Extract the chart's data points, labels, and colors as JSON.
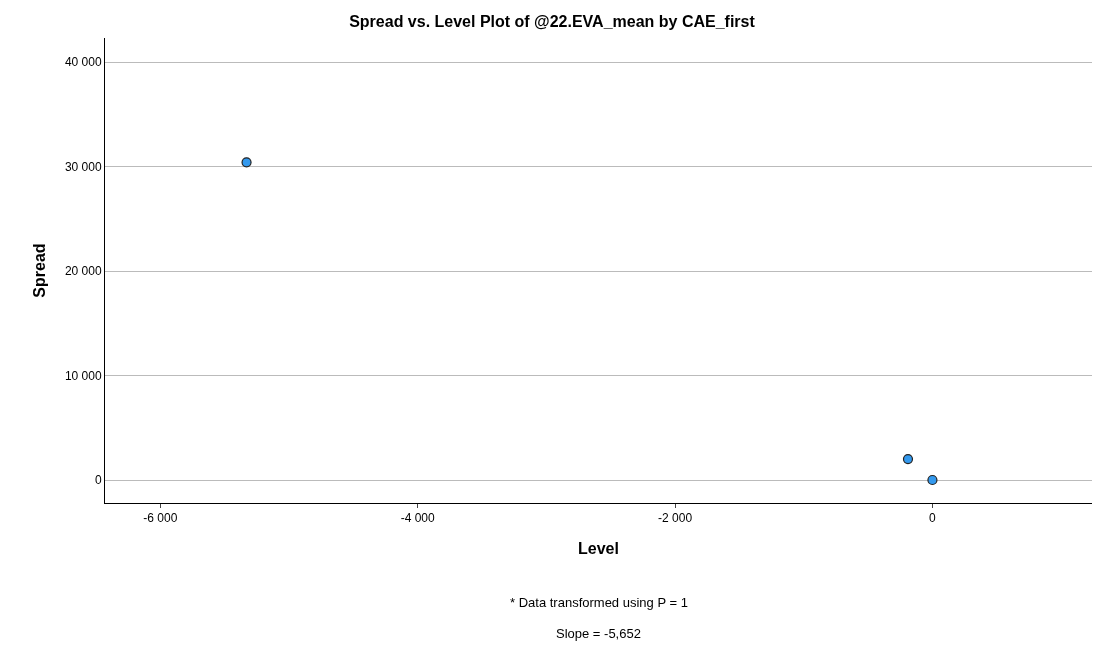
{
  "chart_data": {
    "type": "scatter",
    "title": "Spread vs. Level Plot of @22.EVA_mean by CAE_first",
    "xlabel": "Level",
    "ylabel": "Spread",
    "x": [
      -5330,
      -190,
      0
    ],
    "series": [
      {
        "color": "#3399ee",
        "values": [
          30400,
          2000,
          0
        ]
      }
    ],
    "xlim": [
      -6430,
      1240
    ],
    "xticks": [
      {
        "value": -6000,
        "label": "-6 000"
      },
      {
        "value": -4000,
        "label": "-4 000"
      },
      {
        "value": -2000,
        "label": "-2 000"
      },
      0
    ],
    "ylim": [
      -2200,
      42300
    ],
    "yticks": [
      0,
      {
        "value": 10000,
        "label": "10 000"
      },
      {
        "value": 20000,
        "label": "20 000"
      },
      {
        "value": 30000,
        "label": "30 000"
      },
      {
        "value": 40000,
        "label": "40 000"
      }
    ],
    "grid": "y",
    "marker": "circle",
    "legend": false,
    "annotations": [
      "* Data transformed using P = 1",
      "Slope = -5,652"
    ]
  }
}
